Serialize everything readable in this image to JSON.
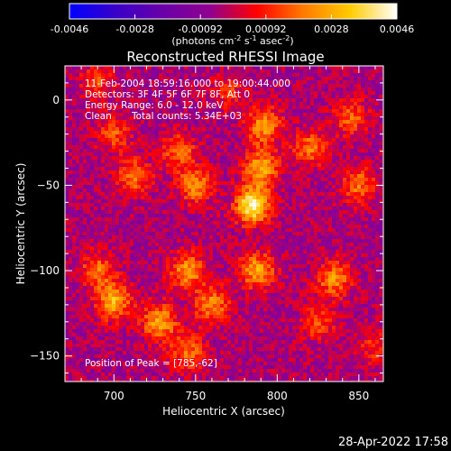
{
  "colorbar": {
    "ticks": [
      "-0.0046",
      "-0.0028",
      "-0.00092",
      "0.00092",
      "0.0028",
      "0.0046"
    ],
    "unit_prefix": "(photons cm",
    "unit_exp1": "-2",
    "unit_mid1": " s",
    "unit_exp2": "-1",
    "unit_mid2": " asec",
    "unit_exp3": "-2",
    "unit_suffix": ")",
    "colors": [
      "#0000ff",
      "#3a00c8",
      "#6a00a8",
      "#900090",
      "#ff0000",
      "#ff7a00",
      "#ffcc00",
      "#ffffff"
    ]
  },
  "chart_data": {
    "type": "heatmap",
    "title": "Reconstructed RHESSI Image",
    "xlabel": "Heliocentric X (arcsec)",
    "ylabel": "Heliocentric Y (arcsec)",
    "xlim": [
      670,
      865
    ],
    "ylim": [
      -165,
      20
    ],
    "x_ticks": [
      700,
      750,
      800,
      850
    ],
    "y_ticks": [
      0,
      -50,
      -100,
      -150
    ],
    "value_range": [
      -0.0046,
      0.0046
    ],
    "peak": [
      785,
      -62
    ],
    "sources": [
      {
        "x": 785,
        "y": -62,
        "v": 0.0046
      },
      {
        "x": 790,
        "y": -40,
        "v": 0.003
      },
      {
        "x": 792,
        "y": -15,
        "v": 0.0028
      },
      {
        "x": 750,
        "y": -50,
        "v": 0.0025
      },
      {
        "x": 740,
        "y": -30,
        "v": 0.0022
      },
      {
        "x": 712,
        "y": -45,
        "v": 0.0024
      },
      {
        "x": 700,
        "y": -20,
        "v": 0.0018
      },
      {
        "x": 690,
        "y": 10,
        "v": 0.0016
      },
      {
        "x": 700,
        "y": -118,
        "v": 0.0032
      },
      {
        "x": 690,
        "y": -100,
        "v": 0.0022
      },
      {
        "x": 728,
        "y": -130,
        "v": 0.003
      },
      {
        "x": 745,
        "y": -100,
        "v": 0.0028
      },
      {
        "x": 760,
        "y": -120,
        "v": 0.0026
      },
      {
        "x": 745,
        "y": -148,
        "v": 0.0022
      },
      {
        "x": 788,
        "y": -100,
        "v": 0.003
      },
      {
        "x": 820,
        "y": -28,
        "v": 0.0022
      },
      {
        "x": 845,
        "y": -10,
        "v": 0.002
      },
      {
        "x": 850,
        "y": -50,
        "v": 0.0022
      },
      {
        "x": 835,
        "y": -105,
        "v": 0.0026
      },
      {
        "x": 825,
        "y": -130,
        "v": 0.0018
      },
      {
        "x": 770,
        "y": 5,
        "v": 0.0014
      },
      {
        "x": 860,
        "y": -145,
        "v": 0.0014
      }
    ]
  },
  "annotations": {
    "line1": "11-Feb-2004 18:59:16.000 to 19:00:44.000",
    "line2": "Detectors: 3F 4F 5F 6F 7F 8F, Att 0",
    "line3": "Energy Range: 6.0 - 12.0 keV",
    "line4_left": "Clean",
    "line4_right": "Total counts: 5.34E+03",
    "peak_label": "Position of Peak = [785,-62]"
  },
  "footer": {
    "timestamp": "28-Apr-2022 17:58"
  }
}
